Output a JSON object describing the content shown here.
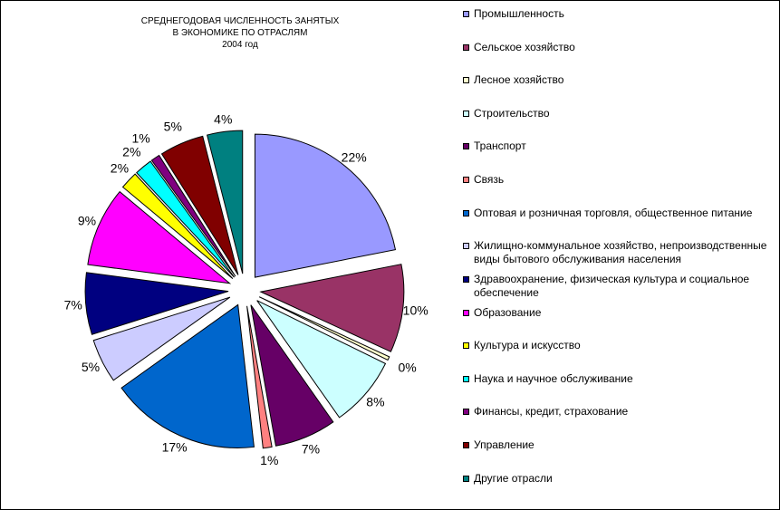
{
  "chart_data": {
    "type": "pie",
    "title_lines": [
      "СРЕДНЕГОДОВАЯ ЧИСЛЕННОСТЬ ЗАНЯТЫХ",
      "В ЭКОНОМИКЕ ПО ОТРАСЛЯМ",
      "2004 год"
    ],
    "slices": [
      {
        "label": "Промышленность",
        "value": 22,
        "value_label": "22%",
        "color": "#9999FF"
      },
      {
        "label": "Сельское хозяйство",
        "value": 10,
        "value_label": "10%",
        "color": "#993366"
      },
      {
        "label": "Лесное хозяйство",
        "value": 0.4,
        "value_label": "0%",
        "color": "#FFFFCC"
      },
      {
        "label": "Строительство",
        "value": 8,
        "value_label": "8%",
        "color": "#CCFFFF"
      },
      {
        "label": "Транспорт",
        "value": 7,
        "value_label": "7%",
        "color": "#660066"
      },
      {
        "label": "Связь",
        "value": 1,
        "value_label": "1%",
        "color": "#FF8080"
      },
      {
        "label": "Оптовая и розничная торговля, общественное питание",
        "value": 17,
        "value_label": "17%",
        "color": "#0066CC"
      },
      {
        "label": "Жилищно-коммунальное хозяйство, непроизводственные виды бытового обслуживания населения",
        "value": 5,
        "value_label": "5%",
        "color": "#CCCCFF"
      },
      {
        "label": "Здравоохранение, физическая культура и социальное обеспечение",
        "value": 7,
        "value_label": "7%",
        "color": "#000080"
      },
      {
        "label": "Образование",
        "value": 9,
        "value_label": "9%",
        "color": "#FF00FF"
      },
      {
        "label": "Культура и искусство",
        "value": 2,
        "value_label": "2%",
        "color": "#FFFF00"
      },
      {
        "label": "Наука и научное обслуживание",
        "value": 2,
        "value_label": "2%",
        "color": "#00FFFF"
      },
      {
        "label": "Финансы, кредит, страхование",
        "value": 1,
        "value_label": "1%",
        "color": "#800080"
      },
      {
        "label": "Управление",
        "value": 5,
        "value_label": "5%",
        "color": "#800000"
      },
      {
        "label": "Другие отрасли",
        "value": 4,
        "value_label": "4%",
        "color": "#008080"
      }
    ],
    "legend_position": "right"
  }
}
